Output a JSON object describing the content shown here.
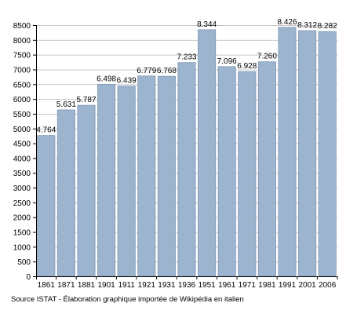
{
  "chart_data": {
    "type": "bar",
    "categories": [
      "1861",
      "1871",
      "1881",
      "1901",
      "1911",
      "1921",
      "1931",
      "1936",
      "1951",
      "1961",
      "1971",
      "1981",
      "1991",
      "2001",
      "2006"
    ],
    "values": [
      4764,
      5631,
      5787,
      6498,
      6439,
      6779,
      6768,
      7233,
      8344,
      7096,
      6928,
      7260,
      8426,
      8312,
      8282
    ],
    "value_labels": [
      "4.764",
      "5.631",
      "5.787",
      "6.498",
      "6.439",
      "6.779",
      "6.768",
      "7.233",
      "8.344",
      "7.096",
      "6.928",
      "7.260",
      "8.426",
      "8.312",
      "8.282"
    ],
    "ylim": [
      0,
      8500
    ],
    "yticks": [
      0,
      500,
      1000,
      1500,
      2000,
      2500,
      3000,
      3500,
      4000,
      4500,
      5000,
      5500,
      6000,
      6500,
      7000,
      7500,
      8000,
      8500
    ],
    "grid": true,
    "bar_color": "#9db4cf",
    "bar_edge_color": "#7f97b5",
    "grid_color": "#c8c8c8"
  },
  "caption": "Source ISTAT - Élaboration graphique importée de Wikipédia en italien"
}
